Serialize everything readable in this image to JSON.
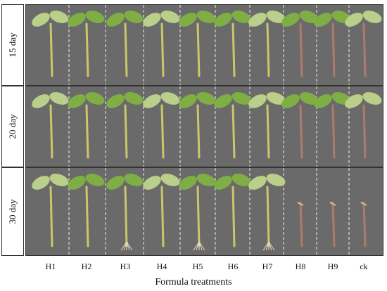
{
  "rows": [
    {
      "label": "15 day"
    },
    {
      "label": "20 day"
    },
    {
      "label": "30 day"
    }
  ],
  "columns": [
    "H1",
    "H2",
    "H3",
    "H4",
    "H5",
    "H6",
    "H7",
    "H8",
    "H9",
    "ck"
  ],
  "xlabel": "Formula treatments",
  "colors": {
    "panel_bg": "#6a6a6a",
    "stem": "#c9c86a",
    "leaf": "#7fae45",
    "leaf_light": "#b9cf8a",
    "stem_reddish": "#b07a6a",
    "divider": "#f0f0f0"
  }
}
